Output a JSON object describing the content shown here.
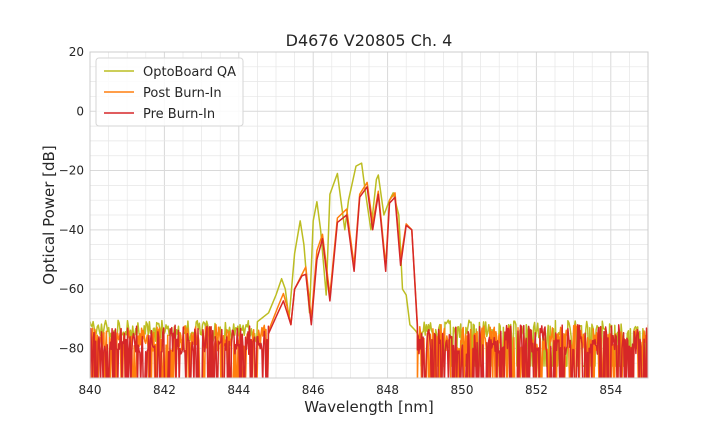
{
  "chart_data": {
    "type": "line",
    "title": "D4676 V20805 Ch. 4",
    "xlabel": "Wavelength [nm]",
    "ylabel": "Optical Power [dB]",
    "xlim": [
      840,
      855
    ],
    "ylim": [
      -90,
      20
    ],
    "xticks": [
      840,
      842,
      844,
      846,
      848,
      850,
      852,
      854
    ],
    "yticks": [
      20,
      0,
      -20,
      -40,
      -60,
      -80
    ],
    "minor_grid_step_x": 0.5,
    "minor_grid_step_y": 5,
    "grid": true,
    "legend_position": "top-left",
    "series": [
      {
        "name": "OptoBoard QA",
        "color": "#bcbd22",
        "noise_floor": -73.5,
        "noise_band": [
          -84,
          -71
        ],
        "x": [
          844.5,
          844.8,
          845.0,
          845.15,
          845.25,
          845.35,
          845.5,
          845.65,
          845.75,
          845.9,
          846.0,
          846.1,
          846.2,
          846.35,
          846.45,
          846.65,
          846.85,
          846.95,
          847.15,
          847.3,
          847.4,
          847.55,
          847.7,
          847.75,
          847.9,
          848.05,
          848.15,
          848.3,
          848.4,
          848.5,
          848.6,
          848.75,
          848.9
        ],
        "y": [
          -71,
          -68,
          -62,
          -56.5,
          -60,
          -70,
          -48,
          -37,
          -45,
          -68,
          -37,
          -30.5,
          -40,
          -62,
          -28,
          -21,
          -40,
          -30,
          -18.5,
          -17.5,
          -27,
          -40,
          -23,
          -21.5,
          -35,
          -30,
          -27.5,
          -35,
          -60,
          -62,
          -72,
          -74,
          -77
        ]
      },
      {
        "name": "Post Burn-In",
        "color": "#ff7f0e",
        "noise_floor": -78,
        "noise_band": [
          -90,
          -72
        ],
        "x": [
          844.8,
          845.05,
          845.2,
          845.3,
          845.4,
          845.5,
          845.7,
          845.8,
          845.95,
          846.1,
          846.25,
          846.45,
          846.65,
          846.9,
          847.1,
          847.25,
          847.45,
          847.6,
          847.75,
          847.95,
          848.05,
          848.2,
          848.35,
          848.5,
          848.65,
          848.8
        ],
        "y": [
          -74,
          -66,
          -61.5,
          -66,
          -72,
          -60,
          -55,
          -52.5,
          -70,
          -47,
          -41.5,
          -62,
          -36,
          -33,
          -52,
          -28,
          -24,
          -38,
          -27,
          -52,
          -30,
          -27.5,
          -50,
          -38,
          -40,
          -72
        ]
      },
      {
        "name": "Pre Burn-In",
        "color": "#d62728",
        "noise_floor": -79,
        "noise_band": [
          -90,
          -72
        ],
        "x": [
          844.8,
          845.05,
          845.2,
          845.3,
          845.4,
          845.5,
          845.7,
          845.8,
          845.95,
          846.1,
          846.25,
          846.45,
          846.65,
          846.9,
          847.1,
          847.25,
          847.45,
          847.6,
          847.75,
          847.95,
          848.05,
          848.2,
          848.35,
          848.5,
          848.65,
          848.8
        ],
        "y": [
          -75,
          -68,
          -64,
          -68,
          -72,
          -60,
          -55.5,
          -55,
          -72,
          -50,
          -43,
          -64,
          -37.5,
          -35,
          -54,
          -29,
          -25.5,
          -40,
          -28,
          -54,
          -31,
          -29,
          -52,
          -38.5,
          -40,
          -73
        ]
      }
    ]
  }
}
